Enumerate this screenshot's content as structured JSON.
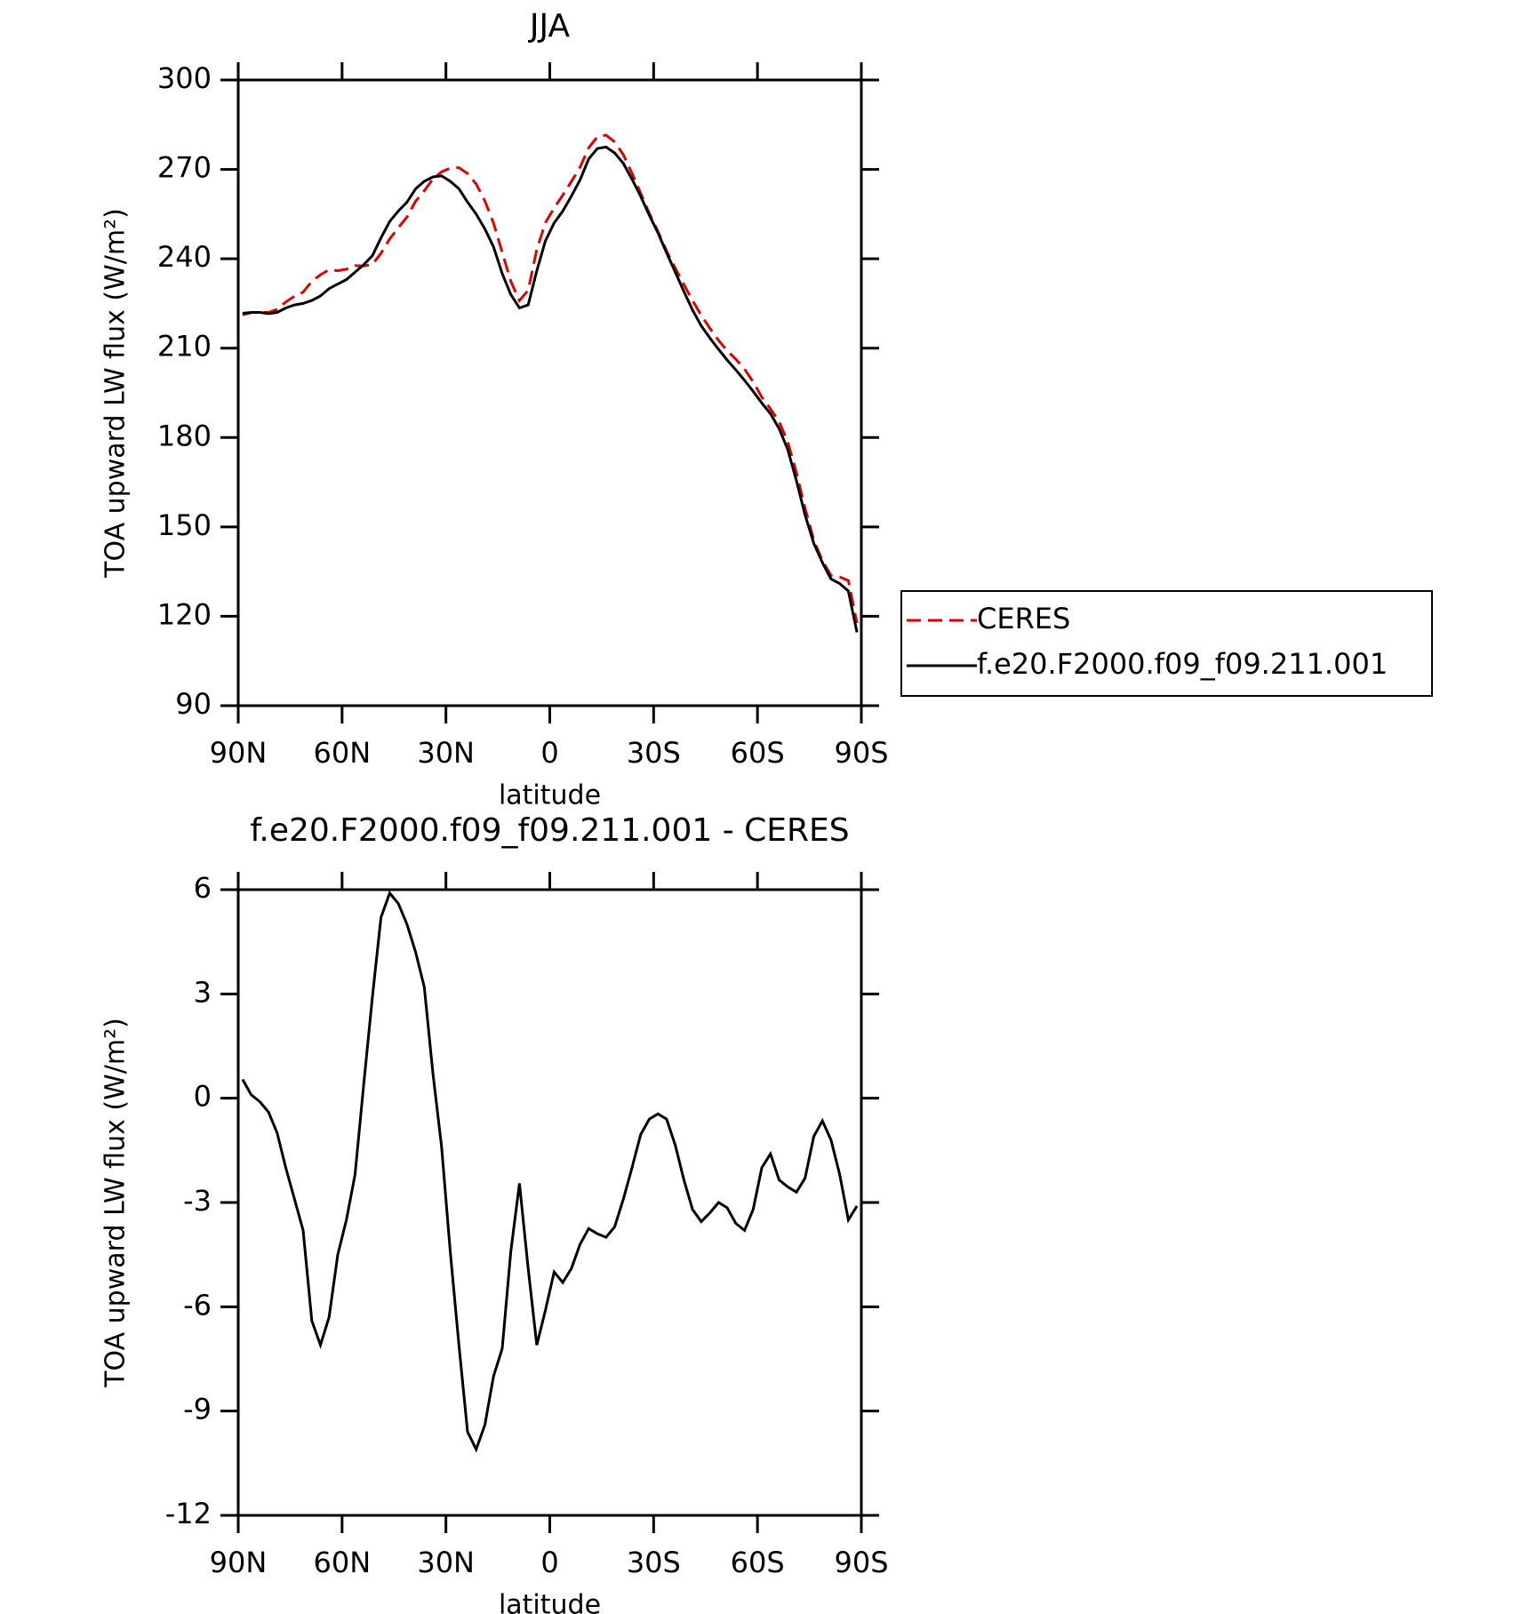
{
  "chart_data": [
    {
      "type": "line",
      "title": "JJA",
      "xlabel": "latitude",
      "ylabel": "TOA upward LW flux (W/m²)",
      "xlim": [
        90,
        -90
      ],
      "xticks": [
        {
          "value": 90,
          "label": "90N"
        },
        {
          "value": 60,
          "label": "60N"
        },
        {
          "value": 30,
          "label": "30N"
        },
        0,
        {
          "value": -30,
          "label": "30S"
        },
        {
          "value": -60,
          "label": "60S"
        },
        {
          "value": -90,
          "label": "90S"
        }
      ],
      "ylim": [
        90,
        300
      ],
      "yticks": [
        90,
        120,
        150,
        180,
        210,
        240,
        270,
        300
      ],
      "legend": "right",
      "x": [
        88.75,
        86.25,
        83.75,
        81.25,
        78.75,
        76.25,
        73.75,
        71.25,
        68.75,
        66.25,
        63.75,
        61.25,
        58.75,
        56.25,
        53.75,
        51.25,
        48.75,
        46.25,
        43.75,
        41.25,
        38.75,
        36.25,
        33.75,
        31.25,
        28.75,
        26.25,
        23.75,
        21.25,
        18.75,
        16.25,
        13.75,
        11.25,
        8.75,
        6.25,
        3.75,
        1.25,
        -1.25,
        -3.75,
        -6.25,
        -8.75,
        -11.25,
        -13.75,
        -16.25,
        -18.75,
        -21.25,
        -23.75,
        -26.25,
        -28.75,
        -31.25,
        -33.75,
        -36.25,
        -38.75,
        -41.25,
        -43.75,
        -46.25,
        -48.75,
        -51.25,
        -53.75,
        -56.25,
        -58.75,
        -61.25,
        -63.75,
        -66.25,
        -68.75,
        -71.25,
        -73.75,
        -76.25,
        -78.75,
        -81.25,
        -83.75,
        -86.25,
        -88.75
      ],
      "series": [
        {
          "name": "CERES",
          "color": "#e00000",
          "linestyle": "dashed",
          "values": [
            221.2,
            221.9,
            222.1,
            222.0,
            223.0,
            225.5,
            227.4,
            228.8,
            232.4,
            234.6,
            236.3,
            236.0,
            236.5,
            237.7,
            237.6,
            238.1,
            241.8,
            246.6,
            250.4,
            254.0,
            259.3,
            262.8,
            266.8,
            269.2,
            270.4,
            270.6,
            268.6,
            265.1,
            259.4,
            252.0,
            242.2,
            232.4,
            225.95,
            229.4,
            243.1,
            252.1,
            257.0,
            261.3,
            265.9,
            270.7,
            277.25,
            280.9,
            281.5,
            279.2,
            274.9,
            268.7,
            262.05,
            255.2,
            249.15,
            242.6,
            236.85,
            231.35,
            226.0,
            221.05,
            216.7,
            212.6,
            209.15,
            206.3,
            203.0,
            198.7,
            193.6,
            189.6,
            185.35,
            178.55,
            168.2,
            156.3,
            145.6,
            138.65,
            133.7,
            133.2,
            132.0,
            117.7
          ]
        },
        {
          "name": "f.e20.F2000.f09_f09.211.001",
          "color": "#000000",
          "linestyle": "solid",
          "values": [
            221.7,
            222,
            222,
            221.6,
            222,
            223.5,
            224.5,
            225,
            226,
            227.5,
            230,
            231.5,
            233,
            235.5,
            238,
            241,
            247,
            252.5,
            256,
            259,
            263.5,
            266,
            267.5,
            267.8,
            266,
            263.5,
            259,
            255,
            250,
            244,
            235,
            228,
            223.5,
            224.5,
            236,
            246,
            252,
            256,
            261,
            266.5,
            273.5,
            277,
            277.5,
            275.5,
            272,
            266.7,
            261,
            254.6,
            248.7,
            242,
            235.5,
            229,
            222.8,
            217.5,
            213.4,
            209.6,
            206,
            202.7,
            199.2,
            195.5,
            191.6,
            188,
            183,
            176,
            165.5,
            154,
            144.5,
            138,
            132.5,
            131,
            128.5,
            114.6
          ]
        }
      ]
    },
    {
      "type": "line",
      "title": "f.e20.F2000.f09_f09.211.001 - CERES",
      "xlabel": "latitude",
      "ylabel": "TOA upward LW flux (W/m²)",
      "xlim": [
        90,
        -90
      ],
      "xticks": [
        {
          "value": 90,
          "label": "90N"
        },
        {
          "value": 60,
          "label": "60N"
        },
        {
          "value": 30,
          "label": "30N"
        },
        0,
        {
          "value": -30,
          "label": "30S"
        },
        {
          "value": -60,
          "label": "60S"
        },
        {
          "value": -90,
          "label": "90S"
        }
      ],
      "ylim": [
        -12,
        6
      ],
      "yticks": [
        -12,
        -9,
        -6,
        -3,
        0,
        3,
        6
      ],
      "x": [
        88.75,
        86.25,
        83.75,
        81.25,
        78.75,
        76.25,
        73.75,
        71.25,
        68.75,
        66.25,
        63.75,
        61.25,
        58.75,
        56.25,
        53.75,
        51.25,
        48.75,
        46.25,
        43.75,
        41.25,
        38.75,
        36.25,
        33.75,
        31.25,
        28.75,
        26.25,
        23.75,
        21.25,
        18.75,
        16.25,
        13.75,
        11.25,
        8.75,
        6.25,
        3.75,
        1.25,
        -1.25,
        -3.75,
        -6.25,
        -8.75,
        -11.25,
        -13.75,
        -16.25,
        -18.75,
        -21.25,
        -23.75,
        -26.25,
        -28.75,
        -31.25,
        -33.75,
        -36.25,
        -38.75,
        -41.25,
        -43.75,
        -46.25,
        -48.75,
        -51.25,
        -53.75,
        -56.25,
        -58.75,
        -61.25,
        -63.75,
        -66.25,
        -68.75,
        -71.25,
        -73.75,
        -76.25,
        -78.75,
        -81.25,
        -83.75,
        -86.25,
        -88.75
      ],
      "series": [
        {
          "color": "#000000",
          "linestyle": "solid",
          "values": [
            0.54,
            0.1,
            -0.1,
            -0.4,
            -1.0,
            -2.0,
            -2.9,
            -3.8,
            -6.4,
            -7.1,
            -6.3,
            -4.5,
            -3.5,
            -2.2,
            0.4,
            2.9,
            5.2,
            5.9,
            5.6,
            5.0,
            4.2,
            3.2,
            0.7,
            -1.4,
            -4.4,
            -7.1,
            -9.6,
            -10.1,
            -9.4,
            -8.0,
            -7.2,
            -4.4,
            -2.45,
            -4.9,
            -7.1,
            -6.1,
            -5.0,
            -5.3,
            -4.9,
            -4.2,
            -3.75,
            -3.9,
            -4.0,
            -3.7,
            -2.9,
            -2.0,
            -1.05,
            -0.6,
            -0.45,
            -0.6,
            -1.35,
            -2.35,
            -3.2,
            -3.55,
            -3.3,
            -3.0,
            -3.15,
            -3.6,
            -3.8,
            -3.2,
            -2.0,
            -1.6,
            -2.35,
            -2.55,
            -2.7,
            -2.3,
            -1.1,
            -0.65,
            -1.2,
            -2.2,
            -3.5,
            -3.1
          ]
        }
      ]
    }
  ]
}
